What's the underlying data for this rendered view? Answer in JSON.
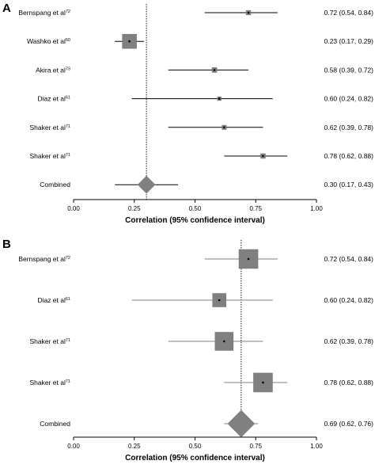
{
  "chart_data": [
    {
      "type": "forest",
      "panel_label": "A",
      "xlabel": "Correlation (95% confidence interval)",
      "xlim": [
        0,
        1
      ],
      "xticks": [
        "0.00",
        "0.25",
        "0.50",
        "0.75",
        "1.00"
      ],
      "reference_line": 0.3,
      "rows": [
        {
          "study": "Bernspang et al",
          "ref": "72",
          "estimate": 0.72,
          "lower": 0.54,
          "upper": 0.84,
          "ci_text": "0.72 (0.54, 0.84)",
          "weight": 0.12
        },
        {
          "study": "Washko et al",
          "ref": "50",
          "estimate": 0.23,
          "lower": 0.17,
          "upper": 0.29,
          "ci_text": "0.23 (0.17, 0.29)",
          "weight": 1.0
        },
        {
          "study": "Akira et al",
          "ref": "73",
          "estimate": 0.58,
          "lower": 0.39,
          "upper": 0.72,
          "ci_text": "0.58 (0.39, 0.72)",
          "weight": 0.15
        },
        {
          "study": "Diaz et al",
          "ref": "61",
          "estimate": 0.6,
          "lower": 0.24,
          "upper": 0.82,
          "ci_text": "0.60 (0.24, 0.82)",
          "weight": 0.05
        },
        {
          "study": "Shaker et al",
          "ref": "71",
          "estimate": 0.62,
          "lower": 0.39,
          "upper": 0.78,
          "ci_text": "0.62 (0.39, 0.78)",
          "weight": 0.1
        },
        {
          "study": "Shaker et al",
          "ref": "71",
          "estimate": 0.78,
          "lower": 0.62,
          "upper": 0.88,
          "ci_text": "0.78 (0.62, 0.88)",
          "weight": 0.14
        }
      ],
      "combined": {
        "label": "Combined",
        "estimate": 0.3,
        "lower": 0.17,
        "upper": 0.43,
        "ci_text": "0.30 (0.17, 0.43)"
      }
    },
    {
      "type": "forest",
      "panel_label": "B",
      "xlabel": "Correlation (95% confidence interval)",
      "xlim": [
        0,
        1
      ],
      "xticks": [
        "0.00",
        "0.25",
        "0.50",
        "0.75",
        "1.00"
      ],
      "reference_line": 0.69,
      "rows": [
        {
          "study": "Bernspang et al",
          "ref": "72",
          "estimate": 0.72,
          "lower": 0.54,
          "upper": 0.84,
          "ci_text": "0.72 (0.54, 0.84)",
          "weight": 1.0
        },
        {
          "study": "Diaz et al",
          "ref": "61",
          "estimate": 0.6,
          "lower": 0.24,
          "upper": 0.82,
          "ci_text": "0.60 (0.24, 0.82)",
          "weight": 0.65
        },
        {
          "study": "Shaker et al",
          "ref": "71",
          "estimate": 0.62,
          "lower": 0.39,
          "upper": 0.78,
          "ci_text": "0.62 (0.39, 0.78)",
          "weight": 0.95
        },
        {
          "study": "Shaker et al",
          "ref": "71",
          "estimate": 0.78,
          "lower": 0.62,
          "upper": 0.88,
          "ci_text": "0.78 (0.62, 0.88)",
          "weight": 1.0
        }
      ],
      "combined": {
        "label": "Combined",
        "estimate": 0.69,
        "lower": 0.62,
        "upper": 0.76,
        "ci_text": "0.69 (0.62, 0.76)"
      }
    }
  ],
  "colors": {
    "marker": "#808080",
    "marker_edge": "#6e6e6e",
    "ci_line_a": "#000000",
    "ci_line_b": "#808080",
    "axis": "#000000"
  }
}
